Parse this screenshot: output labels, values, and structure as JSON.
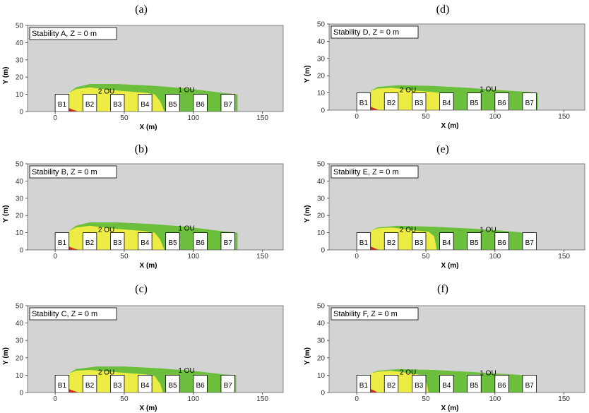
{
  "colors": {
    "plot_bg": "#d3d3d3",
    "level_1": "#6cbf3c",
    "level_2": "#ecec45",
    "level_3": "#d42a1e",
    "building": "#ffffff"
  },
  "chart_data": [
    {
      "type": "area",
      "caption": "(a)",
      "legend": "Stability A, Z = 0 m",
      "xlabel": "X (m)",
      "ylabel": "Y (m)",
      "xlim": [
        -20,
        165
      ],
      "ylim": [
        0,
        50
      ],
      "xticks": [
        0,
        50,
        100,
        150
      ],
      "yticks": [
        0,
        10,
        20,
        30,
        40,
        50
      ],
      "level_labels": [
        {
          "text": "2 OU",
          "x": 37,
          "y": 12
        },
        {
          "text": "1 OU",
          "x": 95,
          "y": 13
        }
      ],
      "buildings": [
        {
          "label": "B1",
          "x0": 0,
          "x1": 10,
          "h": 10
        },
        {
          "label": "B2",
          "x0": 20,
          "x1": 30,
          "h": 10
        },
        {
          "label": "B3",
          "x0": 40,
          "x1": 50,
          "h": 10
        },
        {
          "label": "B4",
          "x0": 60,
          "x1": 70,
          "h": 10
        },
        {
          "label": "B5",
          "x0": 80,
          "x1": 90,
          "h": 10
        },
        {
          "label": "B6",
          "x0": 100,
          "x1": 110,
          "h": 10
        },
        {
          "label": "B7",
          "x0": 120,
          "x1": 130,
          "h": 10
        }
      ],
      "contours": [
        {
          "level": "1 OU",
          "points": [
            [
              10,
              0
            ],
            [
              10,
              11
            ],
            [
              15,
              14
            ],
            [
              25,
              16
            ],
            [
              45,
              16
            ],
            [
              70,
              15
            ],
            [
              95,
              13.5
            ],
            [
              120,
              11
            ],
            [
              132,
              10
            ],
            [
              132,
              0
            ]
          ]
        },
        {
          "level": "2 OU",
          "points": [
            [
              10,
              0
            ],
            [
              10,
              11
            ],
            [
              15,
              13
            ],
            [
              25,
              14
            ],
            [
              40,
              12.5
            ],
            [
              55,
              11.5
            ],
            [
              65,
              11
            ],
            [
              72,
              10
            ],
            [
              76,
              6
            ],
            [
              79,
              0
            ]
          ]
        },
        {
          "level": "3 OU",
          "points": [
            [
              10,
              0
            ],
            [
              10,
              2
            ],
            [
              13,
              1
            ],
            [
              17,
              0
            ]
          ]
        }
      ]
    },
    {
      "type": "area",
      "caption": "(b)",
      "legend": "Stability B, Z = 0 m",
      "xlabel": "X (m)",
      "ylabel": "Y (m)",
      "xlim": [
        -20,
        165
      ],
      "ylim": [
        0,
        50
      ],
      "xticks": [
        0,
        50,
        100,
        150
      ],
      "yticks": [
        0,
        10,
        20,
        30,
        40,
        50
      ],
      "level_labels": [
        {
          "text": "2 OU",
          "x": 37,
          "y": 12
        },
        {
          "text": "1 OU",
          "x": 95,
          "y": 13
        }
      ],
      "buildings": [
        {
          "label": "B1",
          "x0": 0,
          "x1": 10,
          "h": 10
        },
        {
          "label": "B2",
          "x0": 20,
          "x1": 30,
          "h": 10
        },
        {
          "label": "B3",
          "x0": 40,
          "x1": 50,
          "h": 10
        },
        {
          "label": "B4",
          "x0": 60,
          "x1": 70,
          "h": 10
        },
        {
          "label": "B5",
          "x0": 80,
          "x1": 90,
          "h": 10
        },
        {
          "label": "B6",
          "x0": 100,
          "x1": 110,
          "h": 10
        },
        {
          "label": "B7",
          "x0": 120,
          "x1": 130,
          "h": 10
        }
      ],
      "contours": [
        {
          "level": "1 OU",
          "points": [
            [
              10,
              0
            ],
            [
              10,
              11
            ],
            [
              15,
              14
            ],
            [
              25,
              16
            ],
            [
              45,
              16
            ],
            [
              70,
              15
            ],
            [
              95,
              13.5
            ],
            [
              120,
              11
            ],
            [
              132,
              10
            ],
            [
              132,
              0
            ]
          ]
        },
        {
          "level": "2 OU",
          "points": [
            [
              10,
              0
            ],
            [
              10,
              11
            ],
            [
              15,
              13
            ],
            [
              25,
              14
            ],
            [
              40,
              12.5
            ],
            [
              55,
              11.5
            ],
            [
              65,
              11
            ],
            [
              72,
              10
            ],
            [
              76,
              6
            ],
            [
              79,
              0
            ]
          ]
        },
        {
          "level": "3 OU",
          "points": [
            [
              10,
              0
            ],
            [
              10,
              2
            ],
            [
              13,
              1
            ],
            [
              17,
              0
            ]
          ]
        }
      ]
    },
    {
      "type": "area",
      "caption": "(c)",
      "legend": "Stability C, Z = 0 m",
      "xlabel": "X (m)",
      "ylabel": "Y (m)",
      "xlim": [
        -20,
        165
      ],
      "ylim": [
        0,
        50
      ],
      "xticks": [
        0,
        50,
        100,
        150
      ],
      "yticks": [
        0,
        10,
        20,
        30,
        40,
        50
      ],
      "level_labels": [
        {
          "text": "2 OU",
          "x": 37,
          "y": 12
        },
        {
          "text": "1 OU",
          "x": 95,
          "y": 13
        }
      ],
      "buildings": [
        {
          "label": "B1",
          "x0": 0,
          "x1": 10,
          "h": 10
        },
        {
          "label": "B2",
          "x0": 20,
          "x1": 30,
          "h": 10
        },
        {
          "label": "B3",
          "x0": 40,
          "x1": 50,
          "h": 10
        },
        {
          "label": "B4",
          "x0": 60,
          "x1": 70,
          "h": 10
        },
        {
          "label": "B5",
          "x0": 80,
          "x1": 90,
          "h": 10
        },
        {
          "label": "B6",
          "x0": 100,
          "x1": 110,
          "h": 10
        },
        {
          "label": "B7",
          "x0": 120,
          "x1": 130,
          "h": 10
        }
      ],
      "contours": [
        {
          "level": "1 OU",
          "points": [
            [
              10,
              0
            ],
            [
              10,
              11
            ],
            [
              15,
              13.5
            ],
            [
              30,
              15
            ],
            [
              50,
              15
            ],
            [
              75,
              14
            ],
            [
              100,
              12.5
            ],
            [
              122,
              10.5
            ],
            [
              131,
              10
            ],
            [
              131,
              0
            ]
          ]
        },
        {
          "level": "2 OU",
          "points": [
            [
              10,
              0
            ],
            [
              10,
              11
            ],
            [
              15,
              12.5
            ],
            [
              25,
              13
            ],
            [
              40,
              12
            ],
            [
              55,
              11
            ],
            [
              65,
              10.5
            ],
            [
              72,
              9.5
            ],
            [
              76,
              5
            ],
            [
              78,
              0
            ]
          ]
        },
        {
          "level": "3 OU",
          "points": [
            [
              10,
              0
            ],
            [
              10,
              2
            ],
            [
              13,
              1
            ],
            [
              17,
              0
            ]
          ]
        }
      ]
    },
    {
      "type": "area",
      "caption": "(d)",
      "legend": "Stability D, Z = 0 m",
      "xlabel": "X (m)",
      "ylabel": "Y (m)",
      "xlim": [
        -20,
        165
      ],
      "ylim": [
        0,
        50
      ],
      "xticks": [
        0,
        50,
        100,
        150
      ],
      "yticks": [
        0,
        10,
        20,
        30,
        40,
        50
      ],
      "level_labels": [
        {
          "text": "2 OU",
          "x": 37,
          "y": 12
        },
        {
          "text": "1 OU",
          "x": 95,
          "y": 12.5
        }
      ],
      "buildings": [
        {
          "label": "B1",
          "x0": 0,
          "x1": 10,
          "h": 10
        },
        {
          "label": "B2",
          "x0": 20,
          "x1": 30,
          "h": 10
        },
        {
          "label": "B3",
          "x0": 40,
          "x1": 50,
          "h": 10
        },
        {
          "label": "B4",
          "x0": 60,
          "x1": 70,
          "h": 10
        },
        {
          "label": "B5",
          "x0": 80,
          "x1": 90,
          "h": 10
        },
        {
          "label": "B6",
          "x0": 100,
          "x1": 110,
          "h": 10
        },
        {
          "label": "B7",
          "x0": 120,
          "x1": 130,
          "h": 10
        }
      ],
      "contours": [
        {
          "level": "1 OU",
          "points": [
            [
              10,
              0
            ],
            [
              10,
              11
            ],
            [
              15,
              13.5
            ],
            [
              30,
              14.5
            ],
            [
              55,
              14
            ],
            [
              80,
              13
            ],
            [
              105,
              11.5
            ],
            [
              125,
              10.5
            ],
            [
              131,
              10
            ],
            [
              131,
              0
            ]
          ]
        },
        {
          "level": "2 OU",
          "points": [
            [
              10,
              0
            ],
            [
              10,
              11
            ],
            [
              15,
              12.5
            ],
            [
              25,
              13
            ],
            [
              40,
              11.5
            ],
            [
              55,
              10.5
            ],
            [
              62,
              10
            ],
            [
              66,
              7
            ],
            [
              69,
              0
            ]
          ]
        },
        {
          "level": "3 OU",
          "points": [
            [
              10,
              0
            ],
            [
              10,
              2
            ],
            [
              13,
              1
            ],
            [
              16,
              0
            ]
          ]
        }
      ]
    },
    {
      "type": "area",
      "caption": "(e)",
      "legend": "Stability E, Z = 0 m",
      "xlabel": "X (m)",
      "ylabel": "Y (m)",
      "xlim": [
        -20,
        165
      ],
      "ylim": [
        0,
        50
      ],
      "xticks": [
        0,
        50,
        100,
        150
      ],
      "yticks": [
        0,
        10,
        20,
        30,
        40,
        50
      ],
      "level_labels": [
        {
          "text": "2 OU",
          "x": 37,
          "y": 12
        },
        {
          "text": "1 OU",
          "x": 95,
          "y": 12
        }
      ],
      "buildings": [
        {
          "label": "B1",
          "x0": 0,
          "x1": 10,
          "h": 10
        },
        {
          "label": "B2",
          "x0": 20,
          "x1": 30,
          "h": 10
        },
        {
          "label": "B3",
          "x0": 40,
          "x1": 50,
          "h": 10
        },
        {
          "label": "B4",
          "x0": 60,
          "x1": 70,
          "h": 10
        },
        {
          "label": "B5",
          "x0": 80,
          "x1": 90,
          "h": 10
        },
        {
          "label": "B6",
          "x0": 100,
          "x1": 110,
          "h": 10
        },
        {
          "label": "B7",
          "x0": 120,
          "x1": 130,
          "h": 10
        }
      ],
      "contours": [
        {
          "level": "1 OU",
          "points": [
            [
              10,
              0
            ],
            [
              10,
              11
            ],
            [
              15,
              13
            ],
            [
              30,
              14
            ],
            [
              55,
              13.5
            ],
            [
              80,
              12.5
            ],
            [
              100,
              11.5
            ],
            [
              115,
              10.5
            ],
            [
              120,
              10
            ],
            [
              120,
              0
            ]
          ]
        },
        {
          "level": "2 OU",
          "points": [
            [
              10,
              0
            ],
            [
              10,
              11
            ],
            [
              15,
              12.5
            ],
            [
              25,
              13
            ],
            [
              40,
              11.5
            ],
            [
              52,
              10.5
            ],
            [
              56,
              8
            ],
            [
              58,
              0
            ]
          ]
        },
        {
          "level": "3 OU",
          "points": [
            [
              10,
              0
            ],
            [
              10,
              2
            ],
            [
              13,
              1
            ],
            [
              16,
              0
            ]
          ]
        }
      ]
    },
    {
      "type": "area",
      "caption": "(f)",
      "legend": "Stability F, Z = 0 m",
      "xlabel": "X (m)",
      "ylabel": "Y (m)",
      "xlim": [
        -20,
        165
      ],
      "ylim": [
        0,
        50
      ],
      "xticks": [
        0,
        50,
        100,
        150
      ],
      "yticks": [
        0,
        10,
        20,
        30,
        40,
        50
      ],
      "level_labels": [
        {
          "text": "2 OU",
          "x": 37,
          "y": 12
        },
        {
          "text": "1 OU",
          "x": 95,
          "y": 11.5
        }
      ],
      "buildings": [
        {
          "label": "B1",
          "x0": 0,
          "x1": 10,
          "h": 10
        },
        {
          "label": "B2",
          "x0": 20,
          "x1": 30,
          "h": 10
        },
        {
          "label": "B3",
          "x0": 40,
          "x1": 50,
          "h": 10
        },
        {
          "label": "B4",
          "x0": 60,
          "x1": 70,
          "h": 10
        },
        {
          "label": "B5",
          "x0": 80,
          "x1": 90,
          "h": 10
        },
        {
          "label": "B6",
          "x0": 100,
          "x1": 110,
          "h": 10
        },
        {
          "label": "B7",
          "x0": 120,
          "x1": 130,
          "h": 10
        }
      ],
      "contours": [
        {
          "level": "1 OU",
          "points": [
            [
              10,
              0
            ],
            [
              10,
              11
            ],
            [
              15,
              12.5
            ],
            [
              30,
              13.5
            ],
            [
              55,
              13
            ],
            [
              80,
              12
            ],
            [
              100,
              11
            ],
            [
              112,
              10.5
            ],
            [
              120,
              10
            ],
            [
              120,
              0
            ]
          ]
        },
        {
          "level": "2 OU",
          "points": [
            [
              10,
              0
            ],
            [
              10,
              11
            ],
            [
              15,
              12
            ],
            [
              25,
              12.5
            ],
            [
              40,
              11
            ],
            [
              47,
              10
            ],
            [
              50,
              7
            ],
            [
              52,
              0
            ]
          ]
        },
        {
          "level": "3 OU",
          "points": [
            [
              10,
              0
            ],
            [
              10,
              2
            ],
            [
              13,
              1
            ],
            [
              15,
              0
            ]
          ]
        }
      ]
    }
  ]
}
